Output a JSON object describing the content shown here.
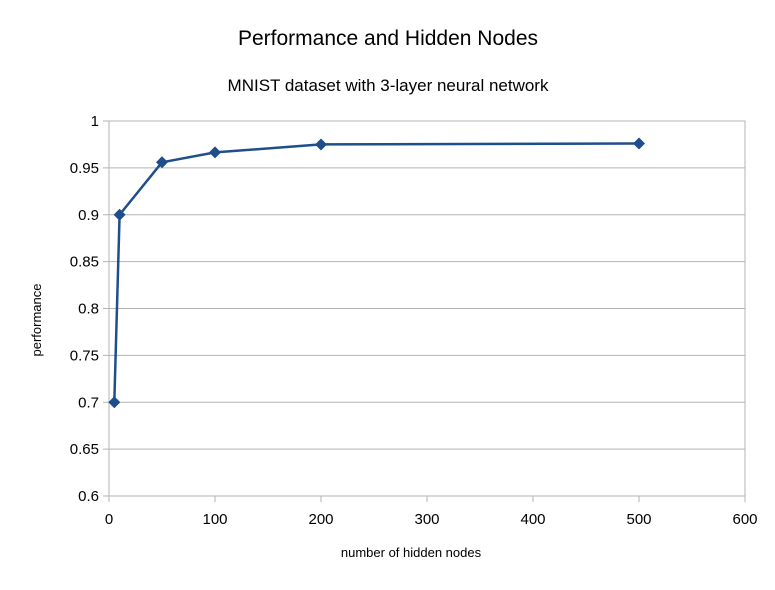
{
  "chart_data": {
    "type": "line",
    "title": "Performance and Hidden Nodes",
    "subtitle": "MNIST dataset with 3-layer neural network",
    "xlabel": "number of hidden nodes",
    "ylabel": "performance",
    "xlim": [
      0,
      600
    ],
    "ylim": [
      0.6,
      1
    ],
    "x_ticks": [
      0,
      100,
      200,
      300,
      400,
      500,
      600
    ],
    "y_ticks": [
      0.6,
      0.65,
      0.7,
      0.75,
      0.8,
      0.85,
      0.9,
      0.95,
      1
    ],
    "y_tick_labels": [
      "0.6",
      "0.65",
      "0.7",
      "0.75",
      "0.8",
      "0.85",
      "0.9",
      "0.95",
      "1"
    ],
    "grid": true,
    "legend": "none",
    "marker": "diamond",
    "series": [
      {
        "color": "#1f4e8c",
        "x": [
          5,
          10,
          50,
          100,
          200,
          500
        ],
        "y": [
          0.7,
          0.9,
          0.956,
          0.9665,
          0.975,
          0.976
        ]
      }
    ]
  }
}
